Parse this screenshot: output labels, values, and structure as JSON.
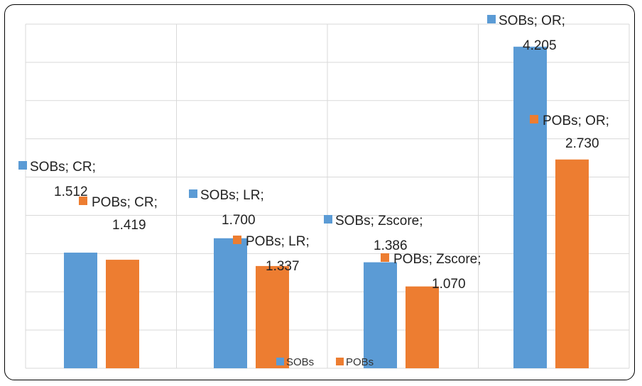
{
  "chart_data": {
    "type": "bar",
    "categories": [
      "CR",
      "LR",
      "Zscore",
      "OR"
    ],
    "series": [
      {
        "name": "SOBs",
        "color": "#5b9bd5",
        "values": [
          1.512,
          1.7,
          1.386,
          4.205
        ]
      },
      {
        "name": "POBs",
        "color": "#ed7d31",
        "values": [
          1.419,
          1.337,
          1.07,
          2.73
        ]
      }
    ],
    "data_labels": [
      [
        "SOBs; CR;",
        "1.512",
        "POBs; CR;",
        "1.419"
      ],
      [
        "SOBs; LR;",
        "1.700",
        "POBs; LR;",
        "1.337"
      ],
      [
        "SOBs; Zscore;",
        "1.386",
        "POBs; Zscore;",
        "1.070"
      ],
      [
        "SOBs; OR;",
        "4.205",
        "POBs; OR;",
        "2.730"
      ]
    ],
    "ylim": [
      0,
      4.5
    ],
    "grid": true,
    "legend": "bottom-center",
    "title": "",
    "xlabel": "",
    "ylabel": ""
  }
}
